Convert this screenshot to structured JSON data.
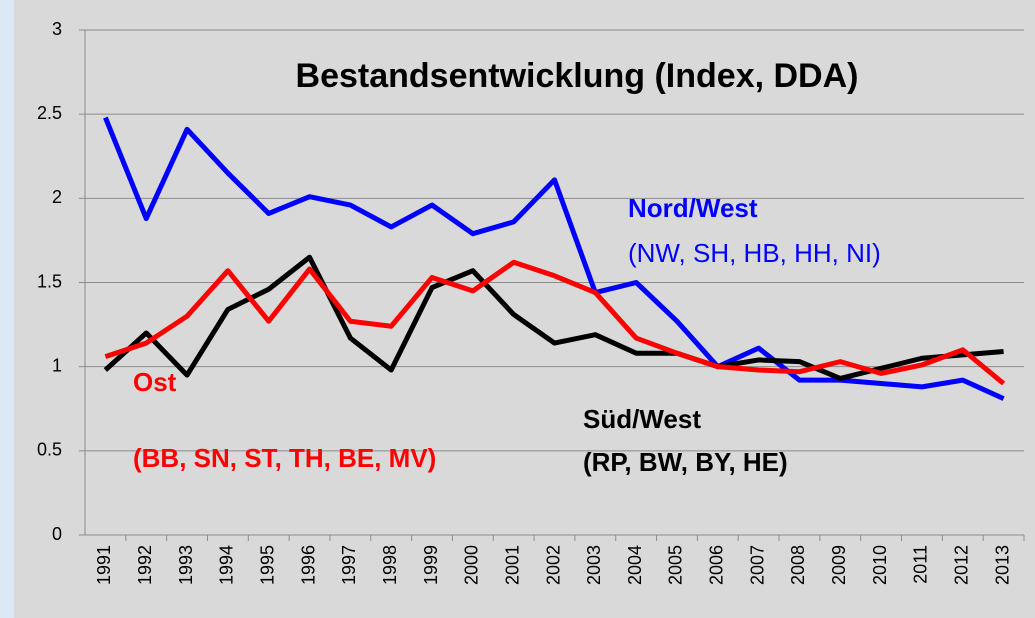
{
  "chart_data": {
    "type": "line",
    "title": "Bestandsentwicklung (Index, DDA)",
    "categories": [
      "1991",
      "1992",
      "1993",
      "1994",
      "1995",
      "1996",
      "1997",
      "1998",
      "1999",
      "2000",
      "2001",
      "2002",
      "2003",
      "2004",
      "2005",
      "2006",
      "2007",
      "2008",
      "2009",
      "2010",
      "2011",
      "2012",
      "2013"
    ],
    "series": [
      {
        "name": "Nord/West",
        "color": "#0000ff",
        "values": [
          2.48,
          1.88,
          2.41,
          2.15,
          1.91,
          2.01,
          1.96,
          1.83,
          1.96,
          1.79,
          1.86,
          2.11,
          1.44,
          1.5,
          1.27,
          1.0,
          1.11,
          0.92,
          0.92,
          0.9,
          0.88,
          0.92,
          0.81
        ]
      },
      {
        "name": "Süd/West",
        "color": "#000000",
        "values": [
          0.98,
          1.2,
          0.95,
          1.34,
          1.46,
          1.65,
          1.17,
          0.98,
          1.47,
          1.57,
          1.31,
          1.14,
          1.19,
          1.08,
          1.08,
          1.0,
          1.04,
          1.03,
          0.93,
          0.99,
          1.05,
          1.07,
          1.09
        ]
      },
      {
        "name": "Ost",
        "color": "#ff0000",
        "values": [
          1.06,
          1.14,
          1.3,
          1.57,
          1.27,
          1.58,
          1.27,
          1.24,
          1.53,
          1.45,
          1.62,
          1.54,
          1.44,
          1.17,
          1.08,
          1.0,
          0.98,
          0.97,
          1.03,
          0.96,
          1.01,
          1.1,
          0.9
        ]
      }
    ],
    "annotations": [
      "(NW, SH, HB, HH, NI)",
      "(RP, BW, BY, HE)",
      "(BB, SN, ST, TH, BE, MV)"
    ],
    "ylim": [
      0,
      3
    ],
    "yticks": [
      0,
      0.5,
      1,
      1.5,
      2,
      2.5,
      3
    ],
    "grid": true
  }
}
